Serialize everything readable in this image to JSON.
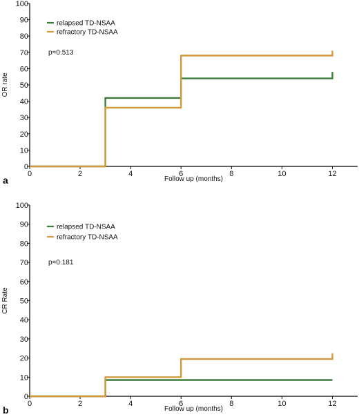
{
  "chart_data": [
    {
      "panel": "a",
      "type": "line",
      "step": true,
      "title": "",
      "xlabel": "Follow up (months)",
      "ylabel": "OR rate",
      "xlim": [
        0,
        13
      ],
      "ylim": [
        0,
        100
      ],
      "xticks": [
        0,
        2,
        4,
        6,
        8,
        10,
        12
      ],
      "yticks": [
        0,
        10,
        20,
        30,
        40,
        50,
        60,
        70,
        80,
        90,
        100
      ],
      "grid": false,
      "legend": "top-left",
      "annotation": "p=0.513",
      "series": [
        {
          "name": "relapsed TD-NSAA",
          "color": "#3a7d3a",
          "x": [
            0,
            3,
            3,
            6,
            6,
            12,
            12
          ],
          "y": [
            0,
            0,
            42,
            42,
            54,
            54,
            58
          ]
        },
        {
          "name": "refractory TD-NSAA",
          "color": "#d49a3a",
          "x": [
            0,
            3,
            3,
            6,
            6,
            12,
            12
          ],
          "y": [
            0,
            0,
            36,
            36,
            68,
            68,
            71
          ]
        }
      ]
    },
    {
      "panel": "b",
      "type": "line",
      "step": true,
      "title": "",
      "xlabel": "Follow up (months)",
      "ylabel": "CR Rate",
      "xlim": [
        0,
        13
      ],
      "ylim": [
        0,
        100
      ],
      "xticks": [
        0,
        2,
        4,
        6,
        8,
        10,
        12
      ],
      "yticks": [
        0,
        10,
        20,
        30,
        40,
        50,
        60,
        70,
        80,
        90,
        100
      ],
      "grid": false,
      "legend": "top-left",
      "annotation": "p=0.181",
      "series": [
        {
          "name": "relapsed TD-NSAA",
          "color": "#3a7d3a",
          "x": [
            0,
            3,
            3,
            12
          ],
          "y": [
            0,
            0,
            8.5,
            8.5
          ]
        },
        {
          "name": "refractory TD-NSAA",
          "color": "#d49a3a",
          "x": [
            0,
            3,
            3,
            6,
            6,
            12,
            12
          ],
          "y": [
            0,
            0,
            10,
            10,
            19.5,
            19.5,
            22.5
          ]
        }
      ]
    }
  ]
}
